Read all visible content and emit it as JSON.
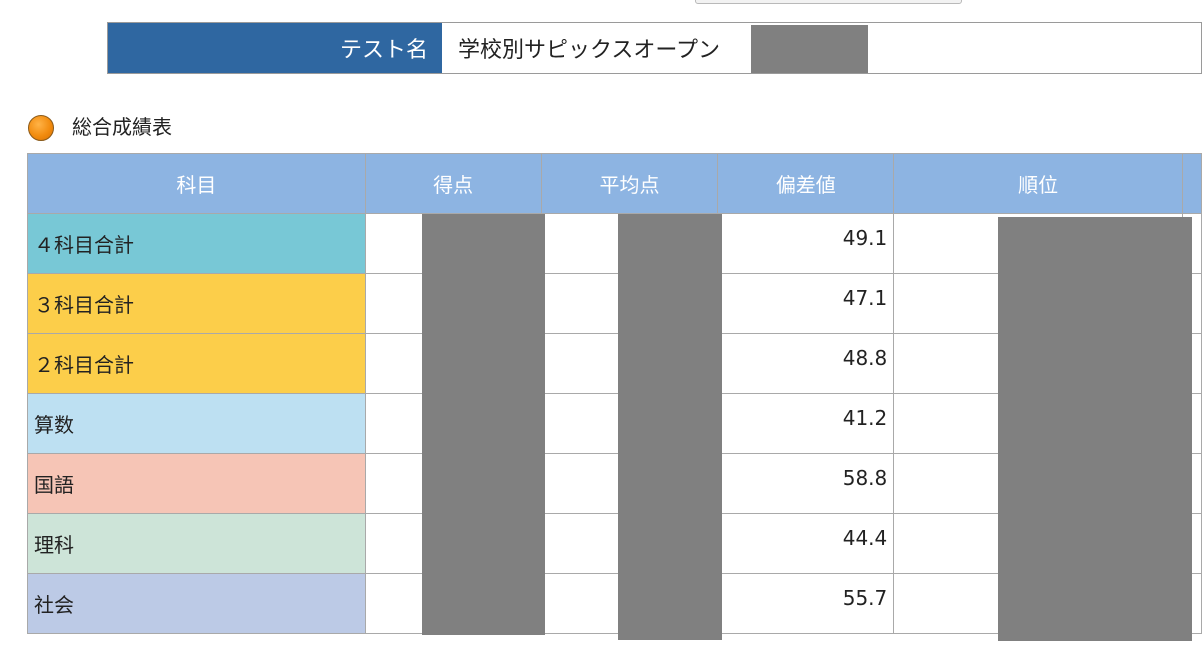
{
  "test_name": {
    "label": "テスト名",
    "value": "学校別サピックスオープン"
  },
  "section": {
    "title": "総合成績表",
    "icon": "orange-circle-icon"
  },
  "table": {
    "headers": {
      "subject": "科目",
      "score": "得点",
      "average": "平均点",
      "deviation": "偏差値",
      "rank": "順位"
    },
    "rows": [
      {
        "subject": "４科目合計",
        "deviation": "49.1",
        "color": "#78c8d6"
      },
      {
        "subject": "３科目合計",
        "deviation": "47.1",
        "color": "#fcce4a"
      },
      {
        "subject": "２科目合計",
        "deviation": "48.8",
        "color": "#fcce4a"
      },
      {
        "subject": "算数",
        "deviation": "41.2",
        "color": "#bde0f2"
      },
      {
        "subject": "国語",
        "deviation": "58.8",
        "color": "#f6c5b6"
      },
      {
        "subject": "理科",
        "deviation": "44.4",
        "color": "#cde4d8"
      },
      {
        "subject": "社会",
        "deviation": "55.7",
        "color": "#bccae6"
      }
    ]
  },
  "colors": {
    "header_bg": "#8db4e2",
    "label_bg": "#2f67a1",
    "redaction": "#808080"
  }
}
